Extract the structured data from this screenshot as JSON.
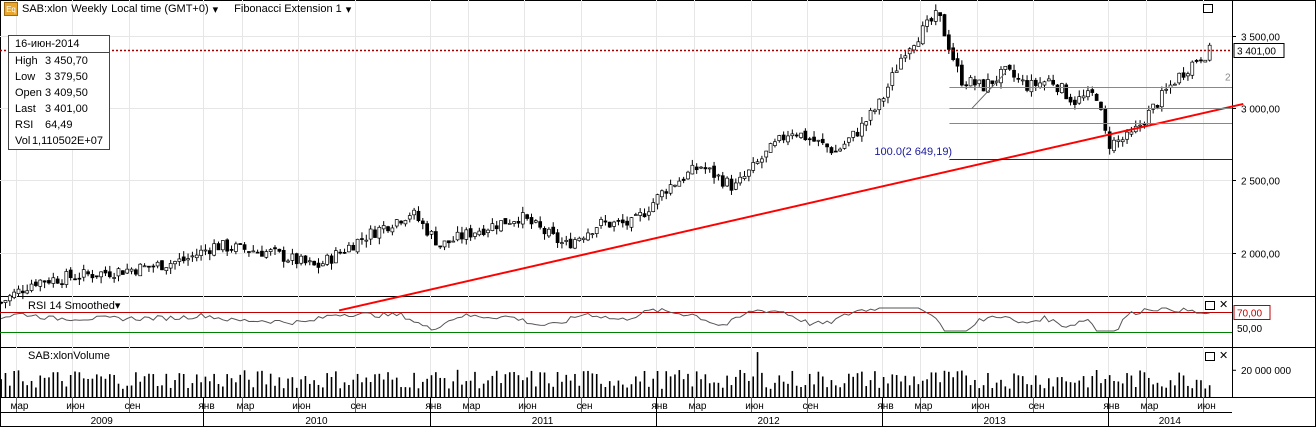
{
  "header": {
    "symbol": "SAB:xlon",
    "interval": "Weekly",
    "timezone": "Local time (GMT+0)",
    "indicator": "Fibonacci Extension 1",
    "logo_text": "Eq"
  },
  "ohlc_panel": {
    "date": "16-июн-2014",
    "rows": [
      {
        "label": "High",
        "value": "3 450,70"
      },
      {
        "label": "Low",
        "value": "3 379,50"
      },
      {
        "label": "Open",
        "value": "3 409,50"
      },
      {
        "label": "Last",
        "value": "3 401,00"
      },
      {
        "label": "RSI",
        "value": "64,49"
      },
      {
        "label": "Vol",
        "value": "1,110502E+07"
      }
    ]
  },
  "price_panel": {
    "y_ticks": [
      {
        "value": 2000,
        "label": "2 000,00"
      },
      {
        "value": 2500,
        "label": "2 500,00"
      },
      {
        "value": 3000,
        "label": "3 000,00"
      },
      {
        "value": 3500,
        "label": "3 500,00"
      }
    ],
    "last_price": {
      "value": 3401,
      "label": "3 401,00"
    },
    "fib_label": "100.0(2 649,19)",
    "fib_side_label": "2",
    "colors": {
      "up": "#1a7a1a",
      "down": "#9a1a1a",
      "trend": "#ff0000",
      "fib": "#1a1aa0"
    }
  },
  "rsi_panel": {
    "title": "RSI 14 Smoothed",
    "upper_level": {
      "value": 70,
      "label": "70,00"
    },
    "mid_label": {
      "value": 50,
      "label": "50,00"
    },
    "lower_level": 30
  },
  "volume_panel": {
    "title": "SAB:xlonVolume",
    "tick": {
      "value": 20000000,
      "label": "20 000 000"
    }
  },
  "x_axis": {
    "months": [
      {
        "label": "мар",
        "t": 2009.17
      },
      {
        "label": "июн",
        "t": 2009.42
      },
      {
        "label": "сен",
        "t": 2009.67
      },
      {
        "label": "янв",
        "t": 2010.0
      },
      {
        "label": "мар",
        "t": 2010.17
      },
      {
        "label": "июн",
        "t": 2010.42
      },
      {
        "label": "сен",
        "t": 2010.67
      },
      {
        "label": "янв",
        "t": 2011.0
      },
      {
        "label": "мар",
        "t": 2011.17
      },
      {
        "label": "июн",
        "t": 2011.42
      },
      {
        "label": "сен",
        "t": 2011.67
      },
      {
        "label": "янв",
        "t": 2012.0
      },
      {
        "label": "мар",
        "t": 2012.17
      },
      {
        "label": "июн",
        "t": 2012.42
      },
      {
        "label": "сен",
        "t": 2012.67
      },
      {
        "label": "янв",
        "t": 2013.0
      },
      {
        "label": "мар",
        "t": 2013.17
      },
      {
        "label": "июн",
        "t": 2013.42
      },
      {
        "label": "сен",
        "t": 2013.67
      },
      {
        "label": "янв",
        "t": 2014.0
      },
      {
        "label": "мар",
        "t": 2014.17
      },
      {
        "label": "июн",
        "t": 2014.42
      }
    ],
    "years": [
      {
        "label": "2009",
        "t": 2009.0
      },
      {
        "label": "2010",
        "t": 2010.0
      },
      {
        "label": "2011",
        "t": 2011.0
      },
      {
        "label": "2012",
        "t": 2012.0
      },
      {
        "label": "2013",
        "t": 2013.0
      },
      {
        "label": "2014",
        "t": 2014.0
      }
    ]
  },
  "chart_data": {
    "type": "line",
    "title": "SAB:xlon Weekly",
    "x_range": [
      2009.1,
      2014.55
    ],
    "ylim": [
      1700,
      3750
    ],
    "grid": true,
    "price_path": [
      [
        2009.1,
        1650
      ],
      [
        2009.25,
        1800
      ],
      [
        2009.5,
        1850
      ],
      [
        2009.75,
        1900
      ],
      [
        2009.92,
        1950
      ],
      [
        2010.05,
        2050
      ],
      [
        2010.3,
        2000
      ],
      [
        2010.5,
        1900
      ],
      [
        2010.7,
        2100
      ],
      [
        2010.92,
        2280
      ],
      [
        2011.05,
        2050
      ],
      [
        2011.2,
        2150
      ],
      [
        2011.4,
        2250
      ],
      [
        2011.6,
        2050
      ],
      [
        2011.75,
        2200
      ],
      [
        2011.9,
        2200
      ],
      [
        2012.05,
        2450
      ],
      [
        2012.2,
        2600
      ],
      [
        2012.35,
        2450
      ],
      [
        2012.5,
        2700
      ],
      [
        2012.6,
        2850
      ],
      [
        2012.8,
        2700
      ],
      [
        2012.9,
        2850
      ],
      [
        2013.0,
        3050
      ],
      [
        2013.1,
        3400
      ],
      [
        2013.25,
        3650
      ],
      [
        2013.35,
        3200
      ],
      [
        2013.45,
        3150
      ],
      [
        2013.55,
        3250
      ],
      [
        2013.65,
        3150
      ],
      [
        2013.75,
        3200
      ],
      [
        2013.85,
        3050
      ],
      [
        2013.95,
        3100
      ],
      [
        2014.0,
        2750
      ],
      [
        2014.1,
        2800
      ],
      [
        2014.2,
        3000
      ],
      [
        2014.3,
        3200
      ],
      [
        2014.4,
        3350
      ],
      [
        2014.46,
        3401
      ]
    ],
    "trendline": [
      [
        2010.6,
        1600
      ],
      [
        2014.6,
        3030
      ]
    ],
    "fib_levels": [
      2649.19,
      2900,
      3000,
      3150
    ]
  }
}
